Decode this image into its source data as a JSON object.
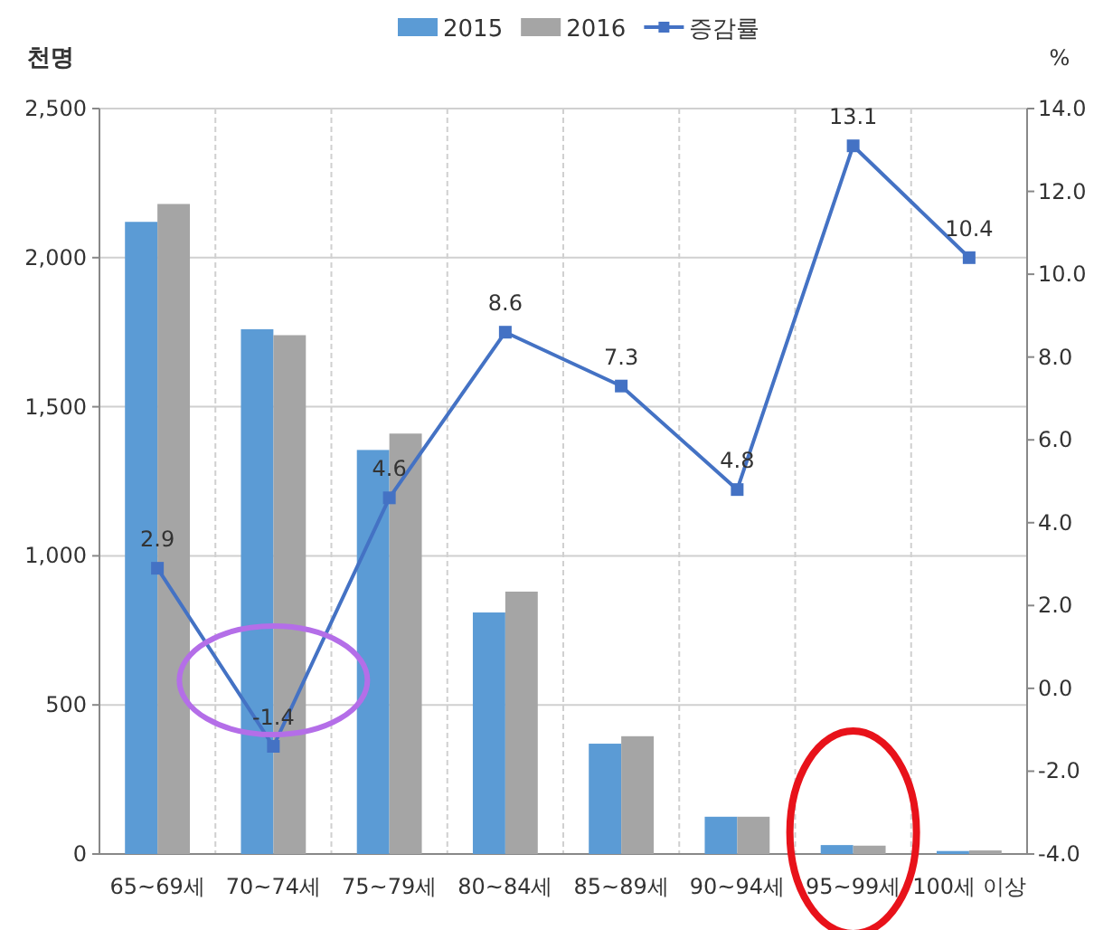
{
  "chart_data": {
    "type": "bar",
    "ylabel": "천명",
    "y2label": "%",
    "categories": [
      "65~69세",
      "70~74세",
      "75~79세",
      "80~84세",
      "85~89세",
      "90~94세",
      "95~99세",
      "100세 이상"
    ],
    "series": [
      {
        "name": "2015",
        "color": "#5b9bd5",
        "values": [
          2120,
          1760,
          1355,
          810,
          370,
          125,
          30,
          10
        ]
      },
      {
        "name": "2016",
        "color": "#a5a5a5",
        "values": [
          2180,
          1740,
          1410,
          880,
          395,
          125,
          28,
          12
        ]
      },
      {
        "name": "증감률",
        "type": "line",
        "axis": "y2",
        "color": "#4472c4",
        "marker": "square",
        "values": [
          2.9,
          -1.4,
          4.6,
          8.6,
          7.3,
          4.8,
          13.1,
          10.4
        ],
        "value_labels": [
          "2.9",
          "-1.4",
          "4.6",
          "8.6",
          "7.3",
          "4.8",
          "13.1",
          "10.4"
        ]
      }
    ],
    "ylim": [
      0,
      2500
    ],
    "yticks": [
      {
        "value": 0,
        "label": "0"
      },
      {
        "value": 500,
        "label": "500"
      },
      {
        "value": 1000,
        "label": "1,000"
      },
      {
        "value": 1500,
        "label": "1,500"
      },
      {
        "value": 2000,
        "label": "2,000"
      },
      {
        "value": 2500,
        "label": "2,500"
      }
    ],
    "y2lim": [
      -4,
      14
    ],
    "y2ticks": [
      {
        "value": -4,
        "label": "-4.0"
      },
      {
        "value": -2,
        "label": "-2.0"
      },
      {
        "value": 0,
        "label": "0.0"
      },
      {
        "value": 2,
        "label": "2.0"
      },
      {
        "value": 4,
        "label": "4.0"
      },
      {
        "value": 6,
        "label": "6.0"
      },
      {
        "value": 8,
        "label": "8.0"
      },
      {
        "value": 10,
        "label": "10.0"
      },
      {
        "value": 12,
        "label": "12.0"
      },
      {
        "value": 14,
        "label": "14.0"
      }
    ],
    "grid": true,
    "legend": "top"
  }
}
